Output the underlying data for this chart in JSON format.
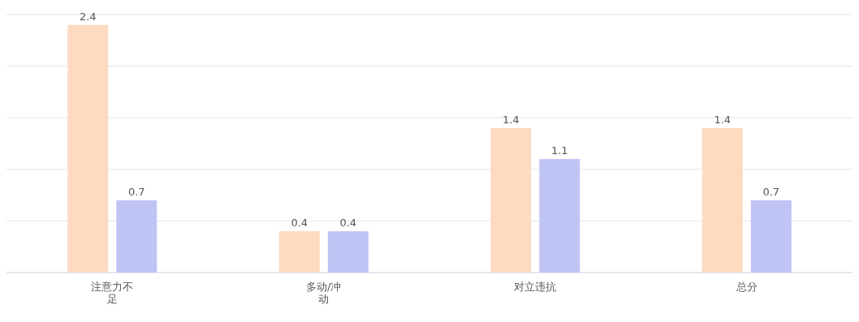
{
  "chart_data": {
    "type": "bar",
    "categories": [
      "注意力不足",
      "多动/冲动",
      "对立违抗",
      "总分"
    ],
    "series": [
      {
        "color": "#fddac0",
        "values": [
          2.4,
          0.4,
          1.4,
          1.4
        ]
      },
      {
        "color": "#c0c4f4",
        "values": [
          0.7,
          0.4,
          1.1,
          0.7
        ]
      }
    ],
    "ylim": [
      0,
      2.5
    ],
    "yticks": [
      {
        "value": 0,
        "label": null
      },
      {
        "value": 0.5,
        "label": null
      },
      {
        "value": 1,
        "label": null
      },
      {
        "value": 1.5,
        "label": null
      },
      {
        "value": 2,
        "label": null
      },
      {
        "value": 2.5,
        "label": null
      }
    ],
    "tick_labels": "x",
    "grid": "y",
    "data_labels": true
  }
}
